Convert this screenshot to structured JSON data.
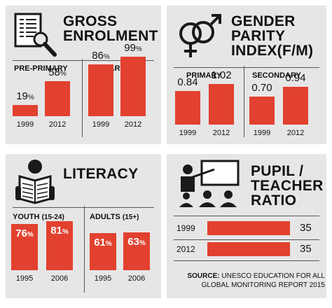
{
  "colors": {
    "bar": "#e2412f",
    "panel": "#e6e6e6"
  },
  "chart_data": [
    {
      "type": "bar",
      "title": "GROSS ENROLMENT",
      "title_lines": [
        "GROSS",
        "ENROLMENT"
      ],
      "icon": "document-magnifier-icon",
      "groups": [
        {
          "name": "PRE-PRIMARY",
          "categories": [
            "1999",
            "2012"
          ],
          "values": [
            19,
            58
          ],
          "labels": [
            "19",
            "58"
          ],
          "unit": "%"
        },
        {
          "name": "PRIMARY",
          "categories": [
            "1999",
            "2012"
          ],
          "values": [
            86,
            99
          ],
          "labels": [
            "86",
            "99"
          ],
          "unit": "%"
        }
      ]
    },
    {
      "type": "bar",
      "title": "GENDER PARITY INDEX(F/M)",
      "title_lines": [
        "GENDER",
        "PARITY",
        "INDEX(F/M)"
      ],
      "icon": "gender-symbols-icon",
      "groups": [
        {
          "name": "PRIMARY",
          "categories": [
            "1999",
            "2012"
          ],
          "values": [
            0.84,
            1.02
          ],
          "labels": [
            "0.84",
            "1.02"
          ],
          "unit": ""
        },
        {
          "name": "SECONDARY",
          "categories": [
            "1999",
            "2012"
          ],
          "values": [
            0.7,
            0.94
          ],
          "labels": [
            "0.70",
            "0.94"
          ],
          "unit": ""
        }
      ]
    },
    {
      "type": "bar",
      "title": "LITERACY",
      "title_lines": [
        "LITERACY"
      ],
      "icon": "reading-person-icon",
      "groups": [
        {
          "name": "YOUTH",
          "name_suffix": "(15-24)",
          "categories": [
            "1995",
            "2006"
          ],
          "values": [
            76,
            81
          ],
          "labels": [
            "76",
            "81"
          ],
          "unit": "%"
        },
        {
          "name": "ADULTS",
          "name_suffix": "(15+)",
          "categories": [
            "1995",
            "2006"
          ],
          "values": [
            61,
            63
          ],
          "labels": [
            "61",
            "63"
          ],
          "unit": "%"
        }
      ]
    },
    {
      "type": "bar",
      "orientation": "horizontal",
      "title": "PUPIL / TEACHER RATIO",
      "title_lines": [
        "PUPIL /",
        "TEACHER",
        "RATIO"
      ],
      "icon": "teacher-classroom-icon",
      "categories": [
        "1999",
        "2012"
      ],
      "values": [
        35,
        35
      ],
      "labels": [
        "35",
        "35"
      ]
    }
  ],
  "source": {
    "label": "SOURCE:",
    "text_line1": "UNESCO EDUCATION FOR ALL",
    "text_line2": "GLOBAL MONITORING REPORT 2015"
  }
}
